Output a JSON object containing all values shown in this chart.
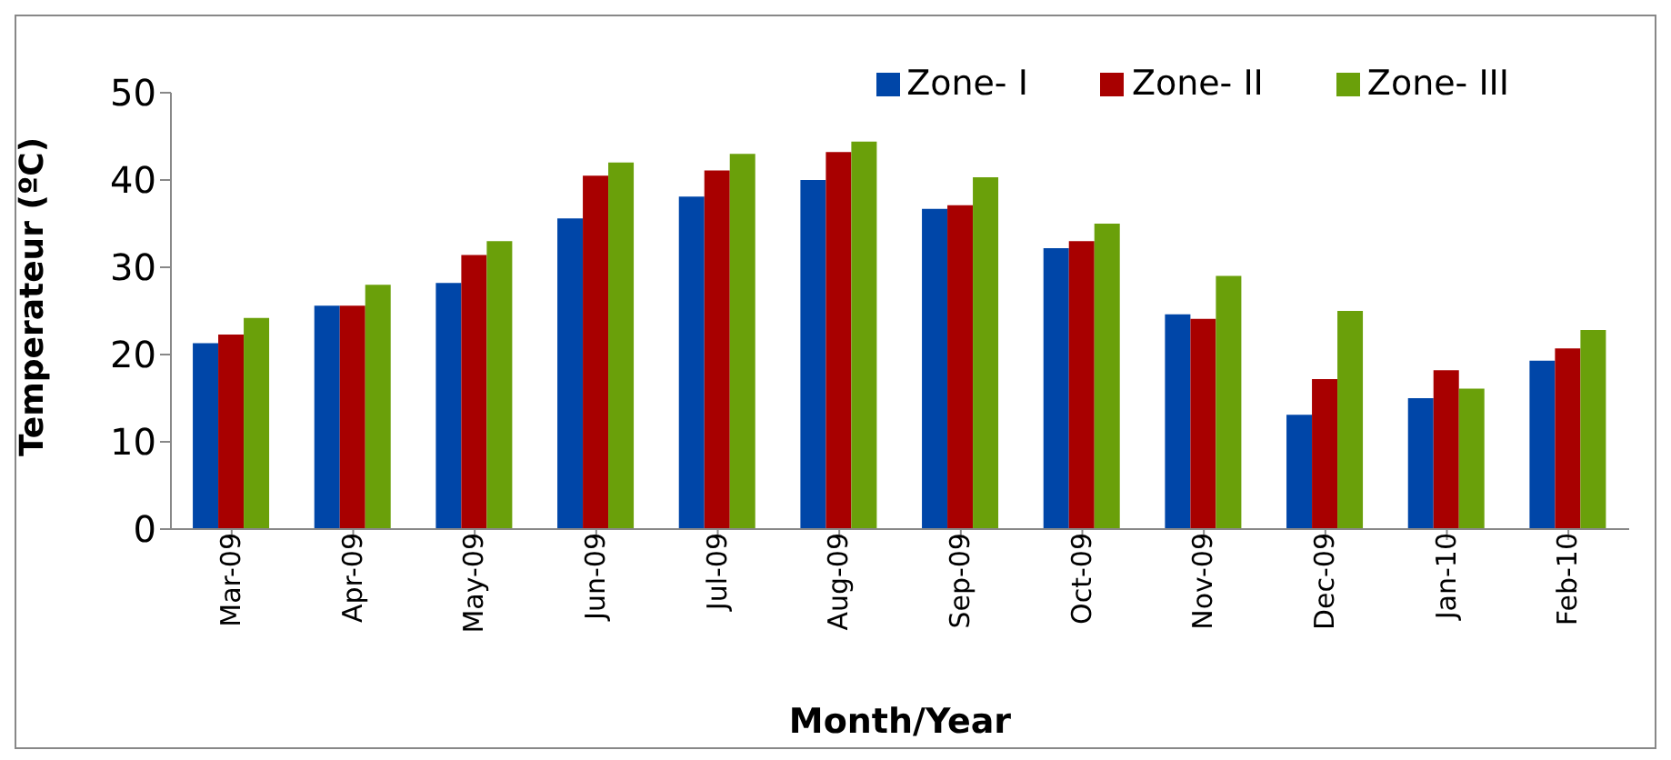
{
  "chart_data": {
    "type": "bar",
    "xlabel": "Month/Year",
    "ylabel": "Temperateur (ºC)",
    "categories": [
      "Mar-09",
      "Apr-09",
      "May-09",
      "Jun-09",
      "Jul-09",
      "Aug-09",
      "Sep-09",
      "Oct-09",
      "Nov-09",
      "Dec-09",
      "Jan-10",
      "Feb-10"
    ],
    "series": [
      {
        "name": "Zone- I",
        "color": "#0046a8",
        "values": [
          21.3,
          25.6,
          28.2,
          35.6,
          38.1,
          40,
          36.7,
          32.2,
          24.6,
          13.1,
          15,
          19.3
        ]
      },
      {
        "name": "Zone- II",
        "color": "#a80000",
        "values": [
          22.3,
          25.6,
          31.4,
          40.5,
          41.1,
          43.2,
          37.1,
          33,
          24.1,
          17.2,
          18.2,
          20.7
        ]
      },
      {
        "name": "Zone- III",
        "color": "#6aa00a",
        "values": [
          24.2,
          28,
          33,
          42,
          43,
          44.4,
          40.3,
          35,
          29,
          25,
          16.1,
          22.8
        ]
      }
    ],
    "ylim": [
      0,
      50
    ],
    "yticks": [
      0,
      10,
      20,
      30,
      40,
      50
    ],
    "grid": false,
    "legend": "top right"
  }
}
